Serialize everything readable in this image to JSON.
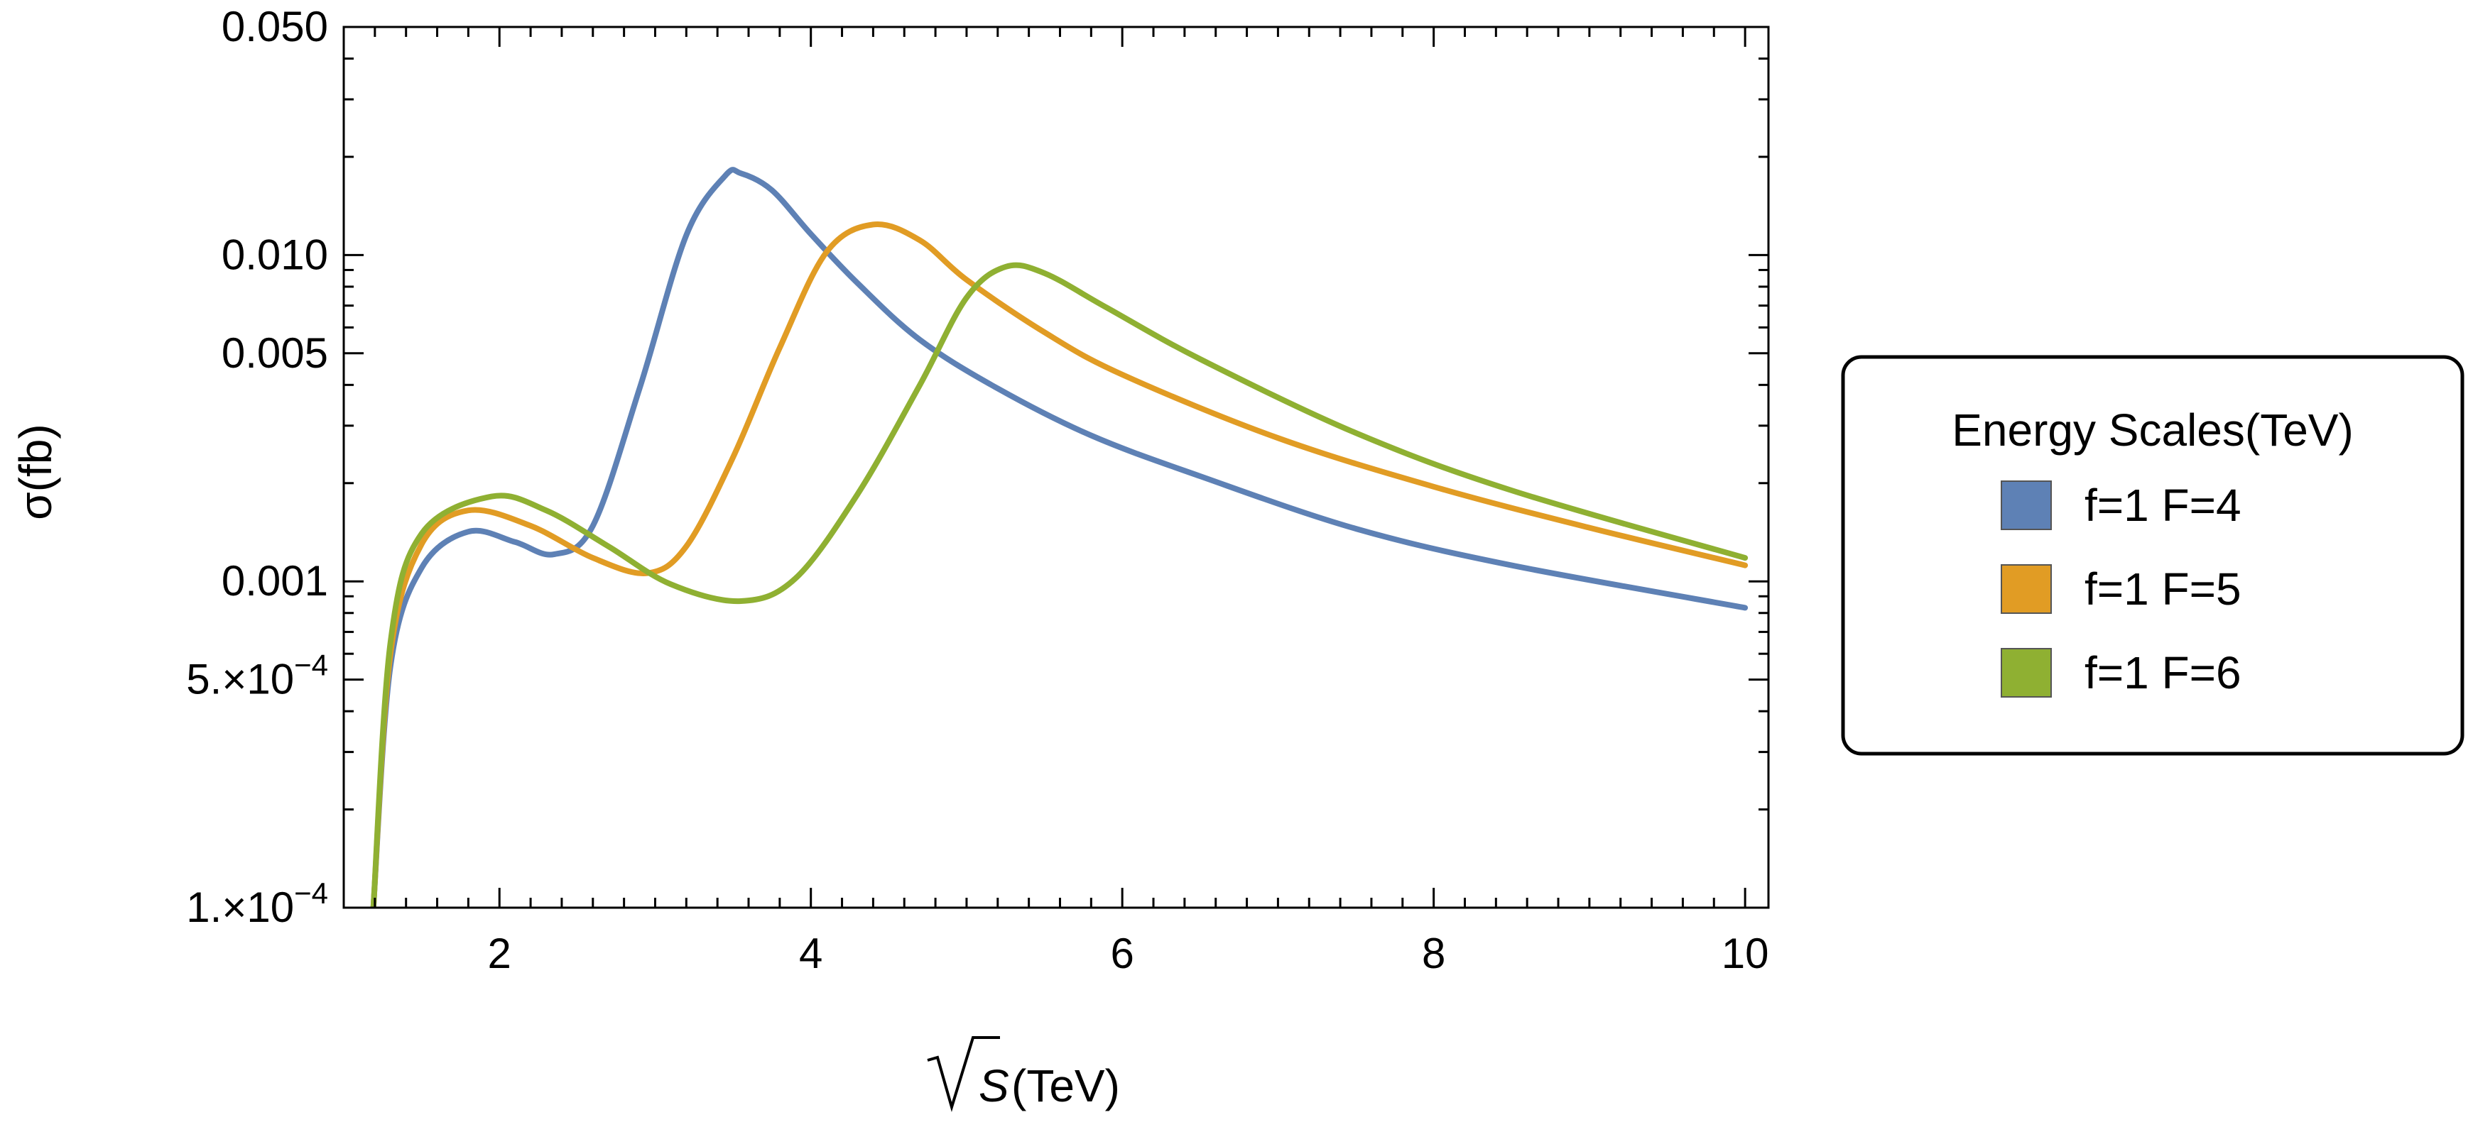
{
  "chart_data": {
    "type": "line",
    "title": "",
    "xlabel": "(TeV)",
    "xlabel_symbol": "S",
    "ylabel": "σ(fb)",
    "xlim": [
      1.0,
      10.15
    ],
    "ylim": [
      0.0001,
      0.05
    ],
    "yscale": "log",
    "grid": false,
    "legend_title": "Energy Scales(TeV)",
    "legend_position": "right",
    "x_ticks": [
      {
        "value": 2,
        "label": "2"
      },
      {
        "value": 4,
        "label": "4"
      },
      {
        "value": 6,
        "label": "6"
      },
      {
        "value": 8,
        "label": "8"
      },
      {
        "value": 10,
        "label": "10"
      }
    ],
    "y_ticks": [
      {
        "value": 0.05,
        "label": "0.050"
      },
      {
        "value": 0.01,
        "label": "0.010"
      },
      {
        "value": 0.005,
        "label": "0.005"
      },
      {
        "value": 0.001,
        "label": "0.001"
      },
      {
        "value": 0.0005,
        "label": "5.×10",
        "exp": "−4"
      },
      {
        "value": 0.0001,
        "label": "1.×10",
        "exp": "−4"
      }
    ],
    "series": [
      {
        "name": "f=1 F=4",
        "color": "#5E81B5",
        "x": [
          1.19,
          1.3,
          1.5,
          1.8,
          2.1,
          2.35,
          2.6,
          2.9,
          3.2,
          3.45,
          3.55,
          3.75,
          4.0,
          4.3,
          4.7,
          5.2,
          5.8,
          6.5,
          7.5,
          8.5,
          10.0
        ],
        "y": [
          0.0001,
          0.00055,
          0.0011,
          0.00142,
          0.00132,
          0.00121,
          0.00148,
          0.0039,
          0.0115,
          0.0175,
          0.0178,
          0.0158,
          0.0116,
          0.0082,
          0.0055,
          0.0039,
          0.0028,
          0.0021,
          0.00145,
          0.00112,
          0.00083
        ]
      },
      {
        "name": "f=1 F=5",
        "color": "#E19C24",
        "x": [
          1.19,
          1.3,
          1.5,
          1.8,
          2.2,
          2.6,
          2.95,
          3.2,
          3.5,
          3.8,
          4.1,
          4.4,
          4.7,
          5.0,
          5.5,
          6.0,
          7.0,
          8.0,
          9.0,
          10.0
        ],
        "y": [
          0.0001,
          0.0006,
          0.0013,
          0.00165,
          0.00148,
          0.00118,
          0.00106,
          0.00128,
          0.0024,
          0.0052,
          0.0102,
          0.0124,
          0.0111,
          0.0084,
          0.0058,
          0.0043,
          0.00275,
          0.00195,
          0.00146,
          0.00112
        ]
      },
      {
        "name": "f=1 F=6",
        "color": "#8FB032",
        "x": [
          1.19,
          1.3,
          1.5,
          1.95,
          2.3,
          2.7,
          3.1,
          3.55,
          3.9,
          4.3,
          4.7,
          5.0,
          5.25,
          5.5,
          5.9,
          6.5,
          7.5,
          8.5,
          10.0
        ],
        "y": [
          0.0001,
          0.00065,
          0.0014,
          0.00182,
          0.00165,
          0.00128,
          0.00098,
          0.00087,
          0.00102,
          0.00185,
          0.004,
          0.0074,
          0.0092,
          0.0088,
          0.0069,
          0.0048,
          0.00285,
          0.0019,
          0.00118
        ]
      }
    ]
  }
}
